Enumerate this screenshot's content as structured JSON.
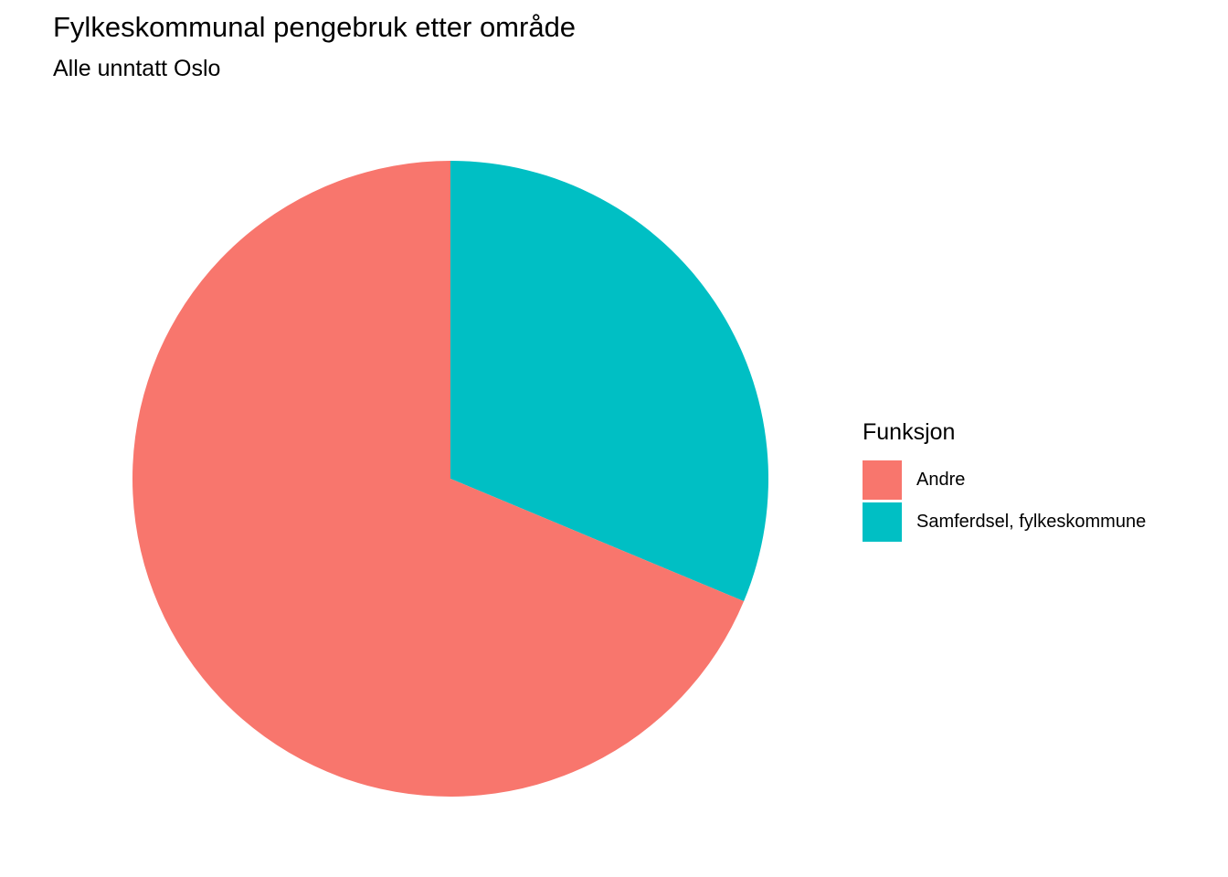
{
  "chart_data": {
    "type": "pie",
    "title": "Fylkeskommunal pengebruk etter område",
    "subtitle": "Alle unntatt Oslo",
    "legend_title": "Funksjon",
    "legend_position": "right",
    "start": "top",
    "direction": "clockwise",
    "slices": [
      {
        "label": "Samferdsel, fylkeskommune",
        "value": 31.3,
        "color": "#00BFC4"
      },
      {
        "label": "Andre",
        "value": 68.7,
        "color": "#F8766D"
      }
    ],
    "legend": [
      {
        "label": "Andre",
        "color": "#F8766D"
      },
      {
        "label": "Samferdsel, fylkeskommune",
        "color": "#00BFC4"
      }
    ]
  }
}
